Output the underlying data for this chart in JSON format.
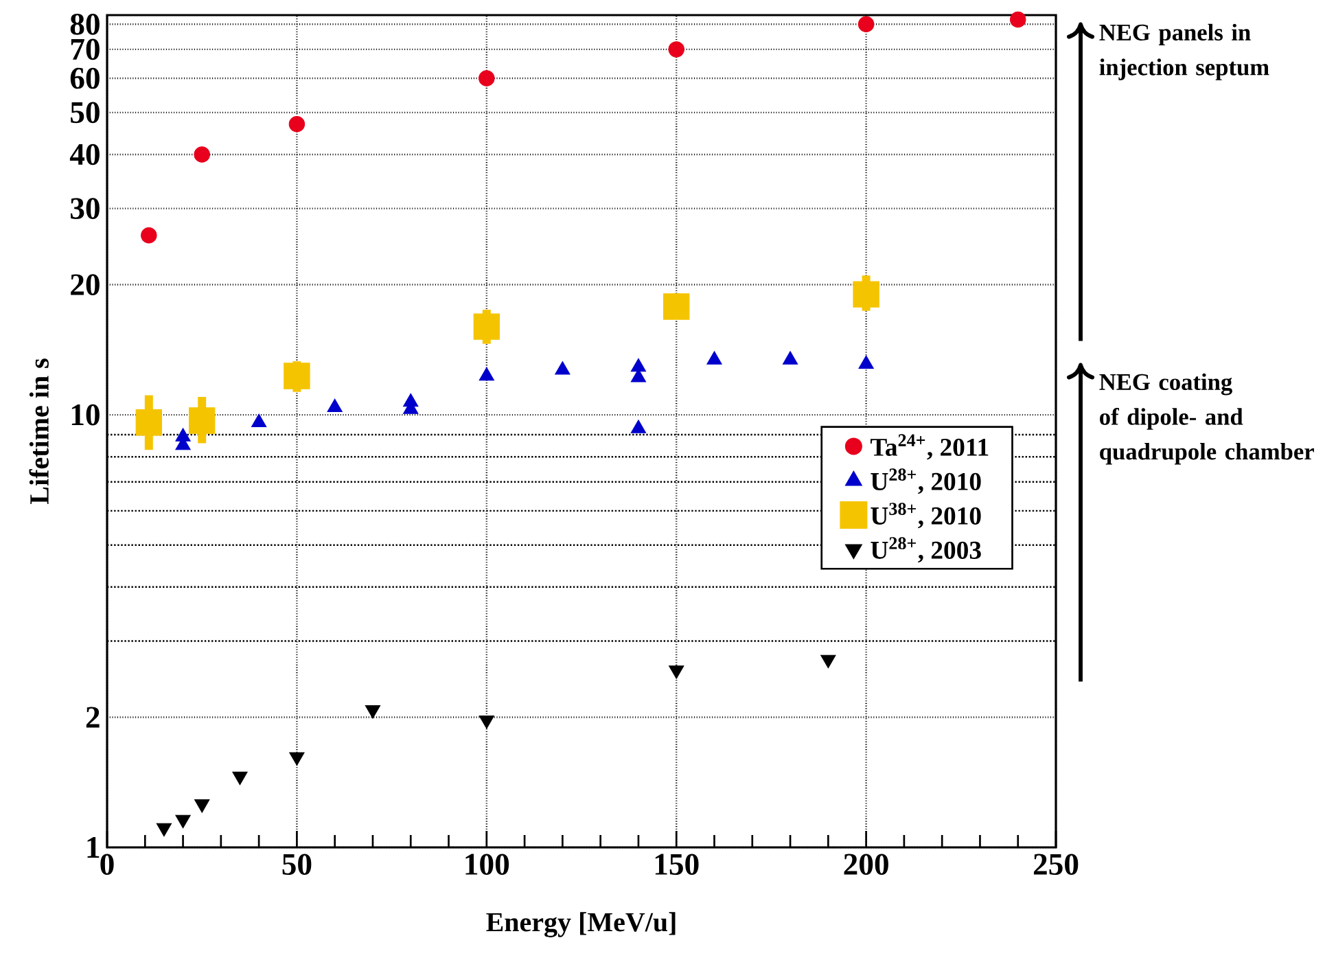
{
  "chart_data": {
    "type": "scatter",
    "xlabel": "Energy [MeV/u]",
    "ylabel": "Lifetime in s",
    "log": "y",
    "grid": true,
    "legend": "right",
    "xlim": [
      0,
      250
    ],
    "ylim": [
      1,
      84
    ],
    "xticks": [
      0,
      {
        "value": 10,
        "label": null
      },
      {
        "value": 20,
        "label": null
      },
      {
        "value": 30,
        "label": null
      },
      {
        "value": 40,
        "label": null
      },
      50,
      {
        "value": 60,
        "label": null
      },
      {
        "value": 70,
        "label": null
      },
      {
        "value": 80,
        "label": null
      },
      {
        "value": 90,
        "label": null
      },
      100,
      {
        "value": 110,
        "label": null
      },
      {
        "value": 120,
        "label": null
      },
      {
        "value": 130,
        "label": null
      },
      {
        "value": 140,
        "label": null
      },
      150,
      {
        "value": 160,
        "label": null
      },
      {
        "value": 170,
        "label": null
      },
      {
        "value": 180,
        "label": null
      },
      {
        "value": 190,
        "label": null
      },
      200,
      {
        "value": 210,
        "label": null
      },
      {
        "value": 220,
        "label": null
      },
      {
        "value": 230,
        "label": null
      },
      {
        "value": 240,
        "label": null
      },
      250
    ],
    "yticks": [
      1,
      2,
      {
        "value": 3,
        "label": null
      },
      {
        "value": 4,
        "label": null
      },
      {
        "value": 5,
        "label": null
      },
      {
        "value": 6,
        "label": null
      },
      {
        "value": 7,
        "label": null
      },
      {
        "value": 8,
        "label": null
      },
      {
        "value": 9,
        "label": null
      },
      10,
      20,
      30,
      40,
      50,
      60,
      70,
      80
    ],
    "series": [
      {
        "name": "Ta$^{24+}$, 2011",
        "color": "#e8001c",
        "marker": "circle",
        "x": [
          11,
          25,
          50,
          100,
          150,
          200,
          240
        ],
        "values": [
          26,
          40,
          47,
          60,
          70,
          80,
          82
        ]
      },
      {
        "name": "U$^{28+}$, 2010",
        "color": "#0000cc",
        "marker": "triangle",
        "x": [
          20,
          20,
          40,
          60,
          80,
          80,
          100,
          120,
          140,
          140,
          140,
          160,
          180,
          200
        ],
        "values": [
          8.9,
          8.5,
          9.6,
          10.4,
          10.7,
          10.3,
          12.3,
          12.7,
          12.9,
          12.2,
          9.3,
          13.4,
          13.4,
          13.1
        ]
      },
      {
        "name": "U$^{38+}$, 2010",
        "color": "#f5c400",
        "marker": "square",
        "x": [
          11,
          25,
          50,
          100,
          150,
          200
        ],
        "values": [
          9.6,
          9.7,
          12.3,
          16,
          17.8,
          19
        ],
        "errors": [
          [
            8.3,
            11.1
          ],
          [
            8.6,
            11
          ],
          [
            11.3,
            13.3
          ],
          [
            14.6,
            17.5
          ],
          [
            16.7,
            19.1
          ],
          [
            17.4,
            21
          ]
        ]
      },
      {
        "name": "U$^{28+}$, 2003",
        "color": "#000000",
        "marker": "triangle-down",
        "x": [
          15,
          20,
          25,
          35,
          50,
          70,
          100,
          150,
          190
        ],
        "values": [
          1.11,
          1.16,
          1.26,
          1.46,
          1.62,
          2.08,
          1.97,
          2.57,
          2.72
        ]
      }
    ],
    "annotations": [
      "NEG panels in injection septum",
      "NEG coating of dipole- and quadrupole chamber"
    ]
  }
}
